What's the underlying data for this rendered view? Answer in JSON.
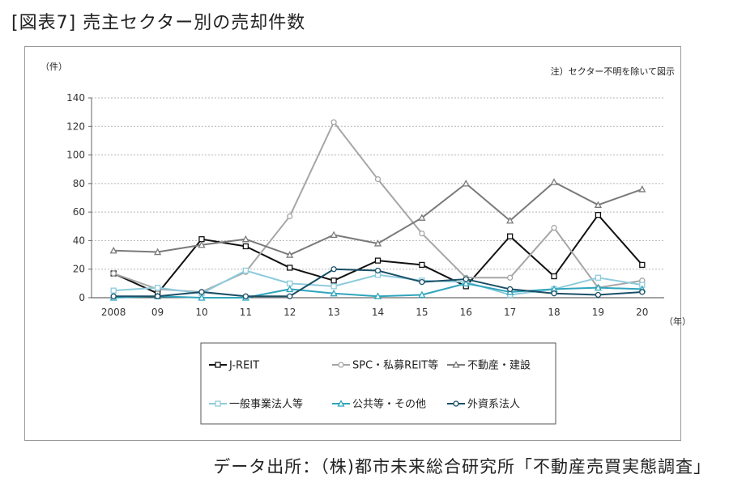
{
  "figure_title": "[図表7] 売主セクター別の売却件数",
  "source": "データ出所：（株)都市未来総合研究所「不動産売買実態調査」",
  "chart_data": {
    "type": "line",
    "ylabel": "（件）",
    "xlabel": "（年）",
    "note": "注）セクター不明を除いて図示",
    "ylim": [
      0,
      140
    ],
    "yticks": [
      0,
      20,
      40,
      60,
      80,
      100,
      120,
      140
    ],
    "categories": [
      "2008",
      "09",
      "10",
      "11",
      "12",
      "13",
      "14",
      "15",
      "16",
      "17",
      "18",
      "19",
      "20"
    ],
    "grid": "horizontal dotted",
    "legend_position": "bottom",
    "series": [
      {
        "name": "J-REIT",
        "color": "#111111",
        "marker": "square",
        "values": [
          17,
          3,
          41,
          36,
          21,
          12,
          26,
          23,
          8,
          43,
          15,
          58,
          23
        ]
      },
      {
        "name": "SPC・私募REIT等",
        "color": "#a6a6a6",
        "marker": "circle",
        "values": [
          17,
          6,
          4,
          18,
          57,
          123,
          83,
          45,
          14,
          14,
          49,
          7,
          12
        ]
      },
      {
        "name": "不動産・建設",
        "color": "#7a7a7a",
        "marker": "triangle",
        "values": [
          33,
          32,
          37,
          41,
          30,
          44,
          38,
          56,
          80,
          54,
          81,
          65,
          76
        ]
      },
      {
        "name": "一般事業法人等",
        "color": "#8ecbdc",
        "marker": "square",
        "values": [
          5,
          7,
          3,
          19,
          10,
          8,
          16,
          12,
          11,
          2,
          6,
          14,
          9
        ]
      },
      {
        "name": "公共等・その他",
        "color": "#2fa5bc",
        "marker": "triangle",
        "values": [
          0,
          1,
          0,
          0,
          6,
          3,
          1,
          2,
          10,
          4,
          6,
          7,
          6
        ]
      },
      {
        "name": "外資系法人",
        "color": "#1a4f66",
        "marker": "circle",
        "values": [
          1,
          1,
          4,
          1,
          1,
          20,
          19,
          11,
          13,
          6,
          3,
          2,
          4
        ]
      }
    ]
  }
}
